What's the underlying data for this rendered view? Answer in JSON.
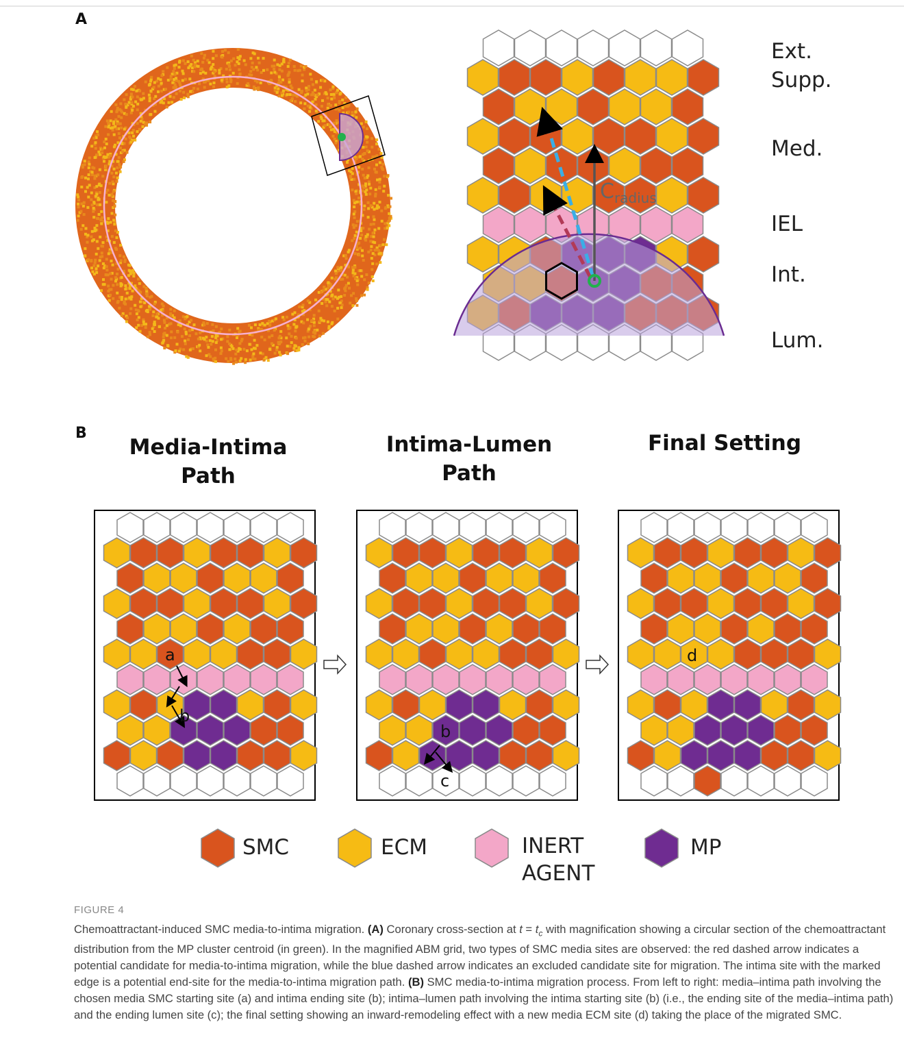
{
  "panel_a": {
    "label": "A",
    "layer_labels": [
      "Ext. Supp.",
      "Med.",
      "IEL",
      "Int.",
      "Lum."
    ],
    "radius_label": {
      "base": "C",
      "sub": "radius"
    }
  },
  "panel_b": {
    "label": "B",
    "panels": [
      {
        "title": "Media-Intima Path",
        "site_labels": [
          "a",
          "b"
        ]
      },
      {
        "title": "Intima-Lumen Path",
        "site_labels": [
          "b",
          "c"
        ]
      },
      {
        "title": "Final Setting",
        "site_labels": [
          "d"
        ]
      }
    ]
  },
  "legend": [
    "SMC",
    "ECM",
    "INERT AGENT",
    "MP"
  ],
  "figure_label": "FIGURE 4",
  "caption": [
    {
      "text": "Chemoattractant-induced SMC media-to-intima migration. "
    },
    {
      "text": "(A)",
      "style": "bold"
    },
    {
      "text": " Coronary cross-section at "
    },
    {
      "text": "t",
      "style": "italic"
    },
    {
      "text": " = "
    },
    {
      "text": "t",
      "style": "italic"
    },
    {
      "text": "c",
      "style": "italic-sub"
    },
    {
      "text": " with magnification showing a circular section of the chemoattractant distribution from the MP cluster centroid (in green). In the magnified ABM grid, two types of SMC media sites are observed: the red dashed arrow indicates a potential candidate for media-to-intima migration, while the blue dashed arrow indicates an excluded candidate site for migration. The intima site with the marked edge is a potential end-site for the media-to-intima migration path. "
    },
    {
      "text": "(B)",
      "style": "bold"
    },
    {
      "text": " SMC media-to-intima migration process. From left to right: media–intima path involving the chosen media SMC starting site (a) and intima ending site (b); intima–lumen path involving the intima starting site (b) (i.e., the ending site of the media–intima path) and the ending lumen site (c); the final setting showing an inward-remodeling effect with a new media ECM site (d) taking the place of the migrated SMC."
    }
  ]
}
